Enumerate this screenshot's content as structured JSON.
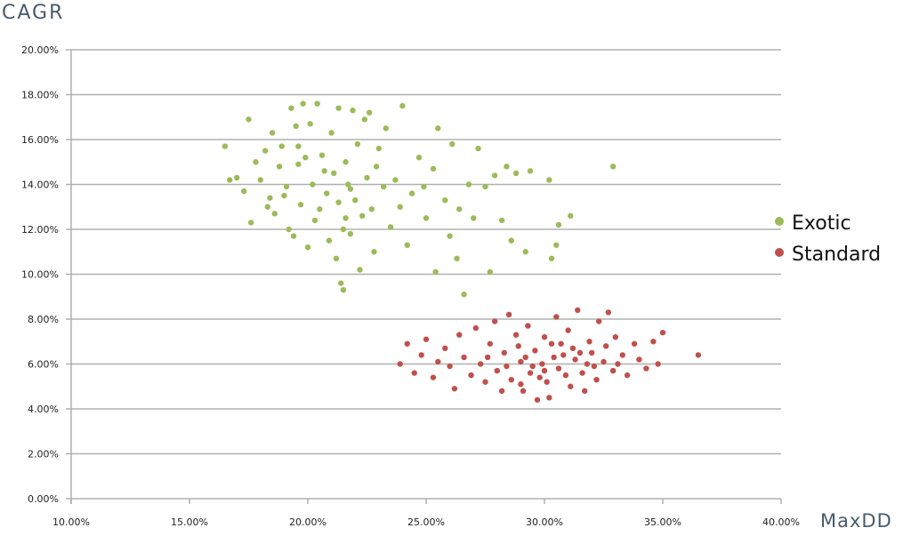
{
  "chart_data": {
    "type": "scatter",
    "title": "",
    "xlabel": "MaxDD",
    "ylabel": "CAGR",
    "xlim": [
      10,
      40
    ],
    "ylim": [
      0,
      20
    ],
    "x_ticks": [
      "10.00%",
      "15.00%",
      "20.00%",
      "25.00%",
      "30.00%",
      "35.00%",
      "40.00%"
    ],
    "y_ticks": [
      "0.00%",
      "2.00%",
      "4.00%",
      "6.00%",
      "8.00%",
      "10.00%",
      "12.00%",
      "14.00%",
      "16.00%",
      "18.00%",
      "20.00%"
    ],
    "grid": "horizontal",
    "legend_position": "right",
    "series": [
      {
        "name": "Exotic",
        "color": "#9bbb59",
        "points": [
          [
            16.5,
            15.7
          ],
          [
            16.7,
            14.2
          ],
          [
            17.0,
            14.3
          ],
          [
            17.3,
            13.7
          ],
          [
            17.5,
            16.9
          ],
          [
            17.6,
            12.3
          ],
          [
            17.8,
            15.0
          ],
          [
            18.0,
            14.2
          ],
          [
            18.2,
            15.5
          ],
          [
            18.3,
            13.0
          ],
          [
            18.5,
            16.3
          ],
          [
            18.6,
            12.7
          ],
          [
            18.8,
            14.8
          ],
          [
            18.9,
            15.7
          ],
          [
            19.0,
            13.5
          ],
          [
            19.2,
            12.0
          ],
          [
            19.3,
            17.4
          ],
          [
            19.4,
            11.7
          ],
          [
            19.5,
            16.6
          ],
          [
            19.6,
            14.9
          ],
          [
            19.7,
            13.1
          ],
          [
            19.8,
            17.6
          ],
          [
            19.9,
            15.2
          ],
          [
            20.0,
            11.2
          ],
          [
            20.1,
            16.7
          ],
          [
            20.2,
            14.0
          ],
          [
            20.3,
            12.4
          ],
          [
            20.4,
            17.6
          ],
          [
            20.6,
            15.3
          ],
          [
            20.8,
            13.6
          ],
          [
            20.9,
            11.5
          ],
          [
            21.0,
            16.3
          ],
          [
            21.1,
            14.5
          ],
          [
            21.2,
            10.7
          ],
          [
            21.3,
            17.4
          ],
          [
            21.3,
            13.2
          ],
          [
            21.4,
            9.6
          ],
          [
            21.5,
            9.3
          ],
          [
            21.5,
            12.0
          ],
          [
            21.6,
            15.0
          ],
          [
            21.7,
            14.0
          ],
          [
            21.8,
            11.8
          ],
          [
            21.9,
            17.3
          ],
          [
            22.0,
            13.3
          ],
          [
            22.1,
            15.8
          ],
          [
            22.2,
            10.2
          ],
          [
            22.3,
            12.6
          ],
          [
            22.4,
            16.9
          ],
          [
            22.5,
            14.3
          ],
          [
            22.6,
            17.2
          ],
          [
            22.8,
            11.0
          ],
          [
            23.0,
            15.6
          ],
          [
            23.2,
            13.9
          ],
          [
            23.3,
            16.5
          ],
          [
            23.5,
            12.1
          ],
          [
            23.7,
            14.2
          ],
          [
            24.0,
            17.5
          ],
          [
            24.2,
            11.3
          ],
          [
            24.4,
            13.6
          ],
          [
            24.7,
            15.2
          ],
          [
            25.0,
            12.5
          ],
          [
            25.3,
            14.7
          ],
          [
            25.4,
            10.1
          ],
          [
            25.5,
            16.5
          ],
          [
            25.8,
            13.3
          ],
          [
            26.0,
            11.7
          ],
          [
            26.1,
            15.8
          ],
          [
            26.3,
            10.7
          ],
          [
            26.6,
            9.1
          ],
          [
            26.8,
            14.0
          ],
          [
            27.0,
            12.5
          ],
          [
            27.2,
            15.6
          ],
          [
            27.5,
            13.9
          ],
          [
            27.7,
            10.1
          ],
          [
            27.9,
            14.4
          ],
          [
            28.2,
            12.4
          ],
          [
            28.4,
            14.8
          ],
          [
            28.6,
            11.5
          ],
          [
            28.8,
            14.5
          ],
          [
            29.2,
            11.0
          ],
          [
            29.4,
            14.6
          ],
          [
            30.2,
            14.2
          ],
          [
            30.3,
            10.7
          ],
          [
            30.5,
            11.3
          ],
          [
            30.6,
            12.2
          ],
          [
            31.1,
            12.6
          ],
          [
            32.9,
            14.8
          ],
          [
            19.1,
            13.9
          ],
          [
            20.5,
            12.9
          ],
          [
            21.8,
            13.8
          ],
          [
            22.7,
            12.9
          ],
          [
            23.9,
            13.0
          ],
          [
            18.4,
            13.4
          ],
          [
            20.7,
            14.6
          ],
          [
            22.9,
            14.8
          ],
          [
            24.9,
            13.9
          ],
          [
            26.4,
            12.9
          ],
          [
            21.6,
            12.5
          ],
          [
            19.6,
            15.7
          ]
        ]
      },
      {
        "name": "Standard",
        "color": "#c0504d",
        "points": [
          [
            23.9,
            6.0
          ],
          [
            24.2,
            6.9
          ],
          [
            24.5,
            5.6
          ],
          [
            24.8,
            6.4
          ],
          [
            25.0,
            7.1
          ],
          [
            25.3,
            5.4
          ],
          [
            25.5,
            6.1
          ],
          [
            25.8,
            6.7
          ],
          [
            26.0,
            5.9
          ],
          [
            26.2,
            4.9
          ],
          [
            26.4,
            7.3
          ],
          [
            26.6,
            6.3
          ],
          [
            26.9,
            5.5
          ],
          [
            27.1,
            7.6
          ],
          [
            27.3,
            6.0
          ],
          [
            27.5,
            5.2
          ],
          [
            27.7,
            6.9
          ],
          [
            27.9,
            7.9
          ],
          [
            28.0,
            5.7
          ],
          [
            28.2,
            4.8
          ],
          [
            28.3,
            6.5
          ],
          [
            28.5,
            8.2
          ],
          [
            28.6,
            5.3
          ],
          [
            28.8,
            7.3
          ],
          [
            29.0,
            6.1
          ],
          [
            29.1,
            4.8
          ],
          [
            29.3,
            7.7
          ],
          [
            29.4,
            5.6
          ],
          [
            29.6,
            6.6
          ],
          [
            29.7,
            4.4
          ],
          [
            29.9,
            6.0
          ],
          [
            30.0,
            7.2
          ],
          [
            30.1,
            5.2
          ],
          [
            30.2,
            4.5
          ],
          [
            30.3,
            6.9
          ],
          [
            30.5,
            8.1
          ],
          [
            30.6,
            5.8
          ],
          [
            30.8,
            6.4
          ],
          [
            31.0,
            7.5
          ],
          [
            31.1,
            5.0
          ],
          [
            31.3,
            6.2
          ],
          [
            31.4,
            8.4
          ],
          [
            31.6,
            5.6
          ],
          [
            31.7,
            4.8
          ],
          [
            31.9,
            7.0
          ],
          [
            32.0,
            6.5
          ],
          [
            32.2,
            5.3
          ],
          [
            32.3,
            7.9
          ],
          [
            32.5,
            6.1
          ],
          [
            32.7,
            8.3
          ],
          [
            32.9,
            5.7
          ],
          [
            33.0,
            7.2
          ],
          [
            33.3,
            6.4
          ],
          [
            33.5,
            5.5
          ],
          [
            33.8,
            6.9
          ],
          [
            34.0,
            6.2
          ],
          [
            34.3,
            5.8
          ],
          [
            34.6,
            7.0
          ],
          [
            35.0,
            7.4
          ],
          [
            34.8,
            6.0
          ],
          [
            36.5,
            6.4
          ],
          [
            29.5,
            5.9
          ],
          [
            30.4,
            6.3
          ],
          [
            31.8,
            6.0
          ],
          [
            28.9,
            6.8
          ],
          [
            27.6,
            6.3
          ],
          [
            30.9,
            5.5
          ],
          [
            32.6,
            6.8
          ],
          [
            29.8,
            5.4
          ],
          [
            31.2,
            6.7
          ],
          [
            28.4,
            5.9
          ],
          [
            29.2,
            6.3
          ],
          [
            30.7,
            6.9
          ],
          [
            31.5,
            6.5
          ],
          [
            32.1,
            5.9
          ],
          [
            29.0,
            5.1
          ],
          [
            30.0,
            5.7
          ],
          [
            33.1,
            6.0
          ]
        ]
      }
    ]
  }
}
